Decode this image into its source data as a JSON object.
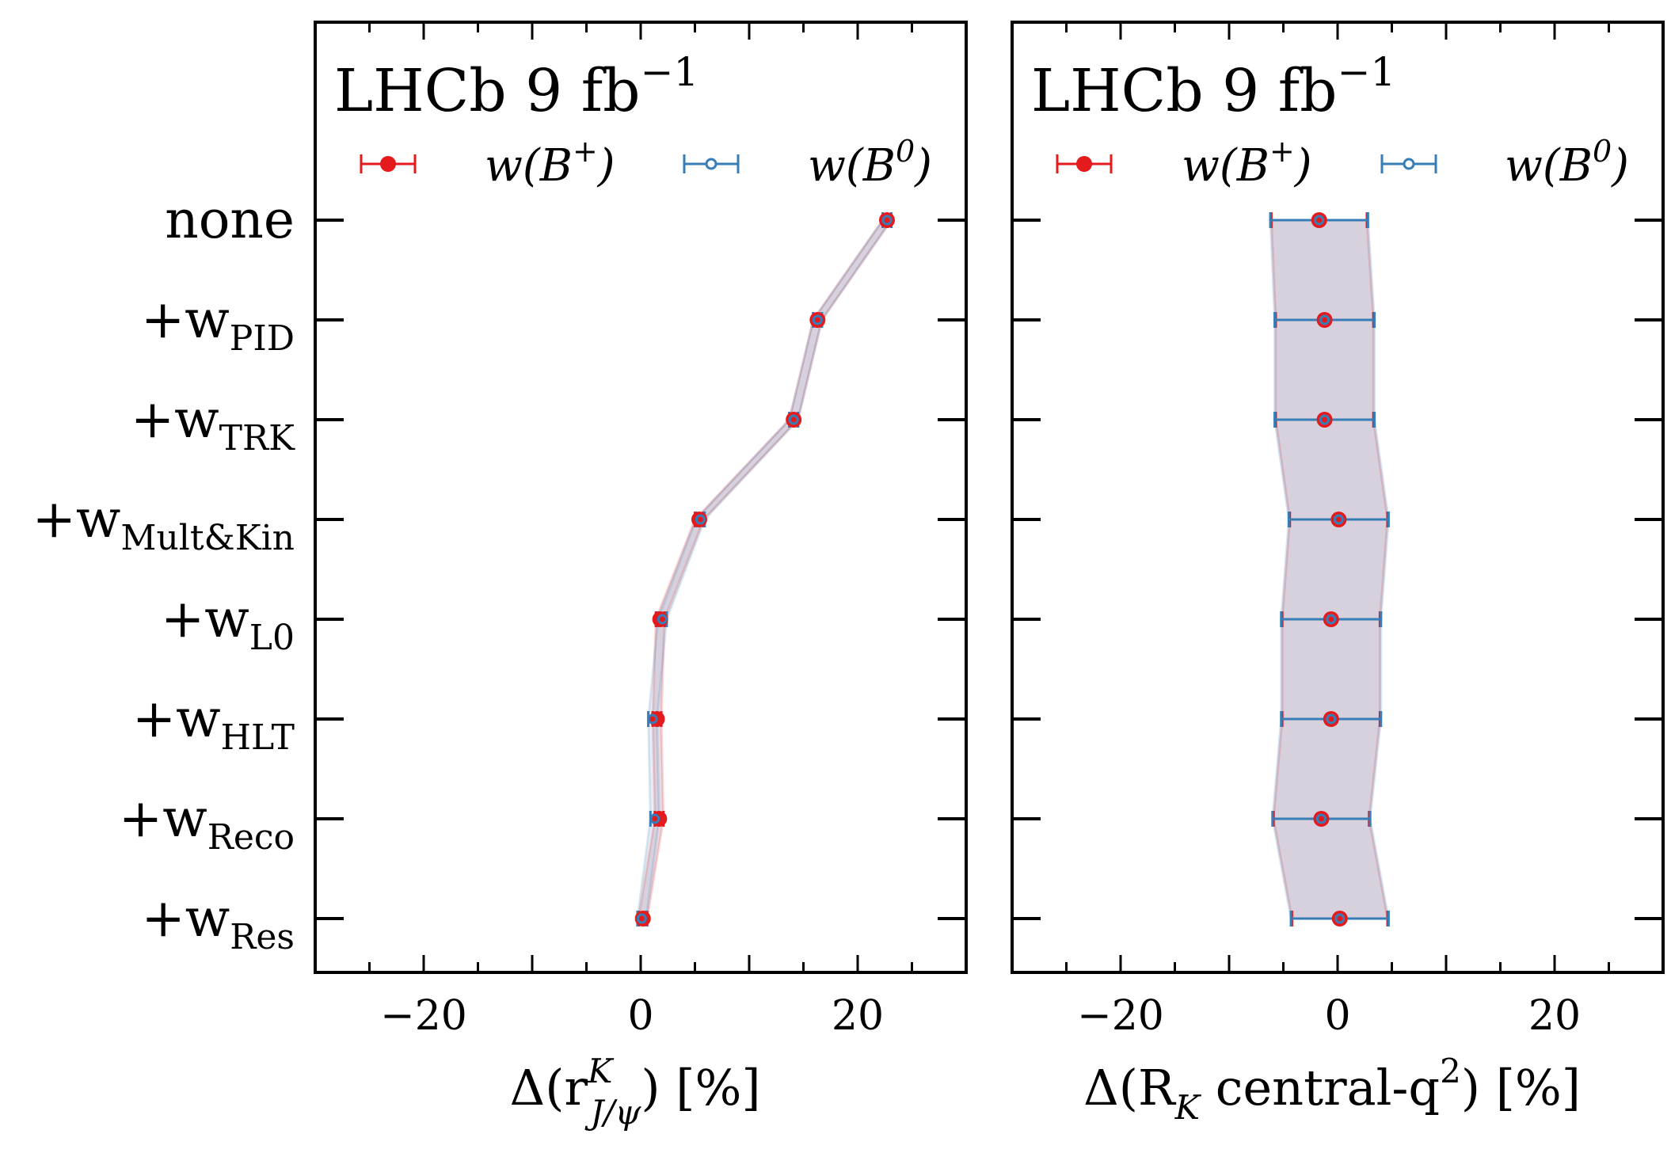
{
  "chart_data": [
    {
      "type": "errorbar",
      "title": "LHCb 9 fb⁻¹",
      "xlabel": "Δ(rᴷ_J/ψ) [%]",
      "ylabel": "",
      "xlim": [
        -30,
        30
      ],
      "xticks": [
        -20,
        0,
        20
      ],
      "xtick_labels": [
        "−20",
        "0",
        "20"
      ],
      "categories": [
        "none",
        "+w_PID",
        "+w_TRK",
        "+w_Mult&Kin",
        "+w_L0",
        "+w_HLT",
        "+w_Reco",
        "+w_Res"
      ],
      "legend": [
        "w(B⁺)",
        "w(B⁰)"
      ],
      "series": [
        {
          "name": "w(B⁺)",
          "color": "#e41a1c",
          "values": [
            22.7,
            16.3,
            14.1,
            5.4,
            1.8,
            1.5,
            1.7,
            0.2
          ],
          "errors": [
            0.4,
            0.4,
            0.4,
            0.4,
            0.4,
            0.4,
            0.4,
            0.4
          ]
        },
        {
          "name": "w(B⁰)",
          "color": "#377eb8",
          "values": [
            22.7,
            16.3,
            14.1,
            5.5,
            2.0,
            1.1,
            1.3,
            0.1
          ],
          "errors": [
            0.4,
            0.4,
            0.4,
            0.4,
            0.4,
            0.4,
            0.4,
            0.4
          ]
        }
      ]
    },
    {
      "type": "errorbar",
      "title": "LHCb 9 fb⁻¹",
      "xlabel": "Δ(R_K central-q²) [%]",
      "ylabel": "",
      "xlim": [
        -30,
        30
      ],
      "xticks": [
        -20,
        0,
        20
      ],
      "xtick_labels": [
        "−20",
        "0",
        "20"
      ],
      "categories": [
        "none",
        "+w_PID",
        "+w_TRK",
        "+w_Mult&Kin",
        "+w_L0",
        "+w_HLT",
        "+w_Reco",
        "+w_Res"
      ],
      "legend": [
        "w(B⁺)",
        "w(B⁰)"
      ],
      "series": [
        {
          "name": "w(B⁺)",
          "color": "#e41a1c",
          "values": [
            -1.7,
            -1.2,
            -1.2,
            0.1,
            -0.6,
            -0.6,
            -1.5,
            0.2
          ],
          "errors": [
            4.4,
            4.5,
            4.5,
            4.5,
            4.5,
            4.5,
            4.4,
            4.4
          ]
        },
        {
          "name": "w(B⁰)",
          "color": "#377eb8",
          "values": [
            -1.7,
            -1.2,
            -1.2,
            0.1,
            -0.6,
            -0.6,
            -1.5,
            0.2
          ],
          "errors": [
            4.5,
            4.6,
            4.6,
            4.6,
            4.6,
            4.6,
            4.5,
            4.5
          ]
        }
      ]
    }
  ],
  "row_labels": [
    {
      "main": "none",
      "sub": ""
    },
    {
      "main": "+w",
      "sub": "PID"
    },
    {
      "main": "+w",
      "sub": "TRK"
    },
    {
      "main": "+w",
      "sub": "Mult&Kin"
    },
    {
      "main": "+w",
      "sub": "L0"
    },
    {
      "main": "+w",
      "sub": "HLT"
    },
    {
      "main": "+w",
      "sub": "Reco"
    },
    {
      "main": "+w",
      "sub": "Res"
    }
  ],
  "panels": [
    {
      "title_main": "LHCb 9 fb",
      "title_sup": "−1",
      "legend_b_plus": {
        "pre": "w(B",
        "sup": "+",
        "post": ")"
      },
      "legend_b_zero": {
        "pre": "w(B",
        "sup": "0",
        "post": ")"
      },
      "xlabel": {
        "pre": "Δ(r",
        "sup": "K",
        "sub": "J/ψ",
        "post": ") [%]"
      }
    },
    {
      "title_main": "LHCb 9 fb",
      "title_sup": "−1",
      "legend_b_plus": {
        "pre": "w(B",
        "sup": "+",
        "post": ")"
      },
      "legend_b_zero": {
        "pre": "w(B",
        "sup": "0",
        "post": ")"
      },
      "xlabel": {
        "pre": "Δ(R",
        "sub": "K",
        "mid": " central-q",
        "sup": "2",
        "post": ") [%]"
      }
    }
  ]
}
